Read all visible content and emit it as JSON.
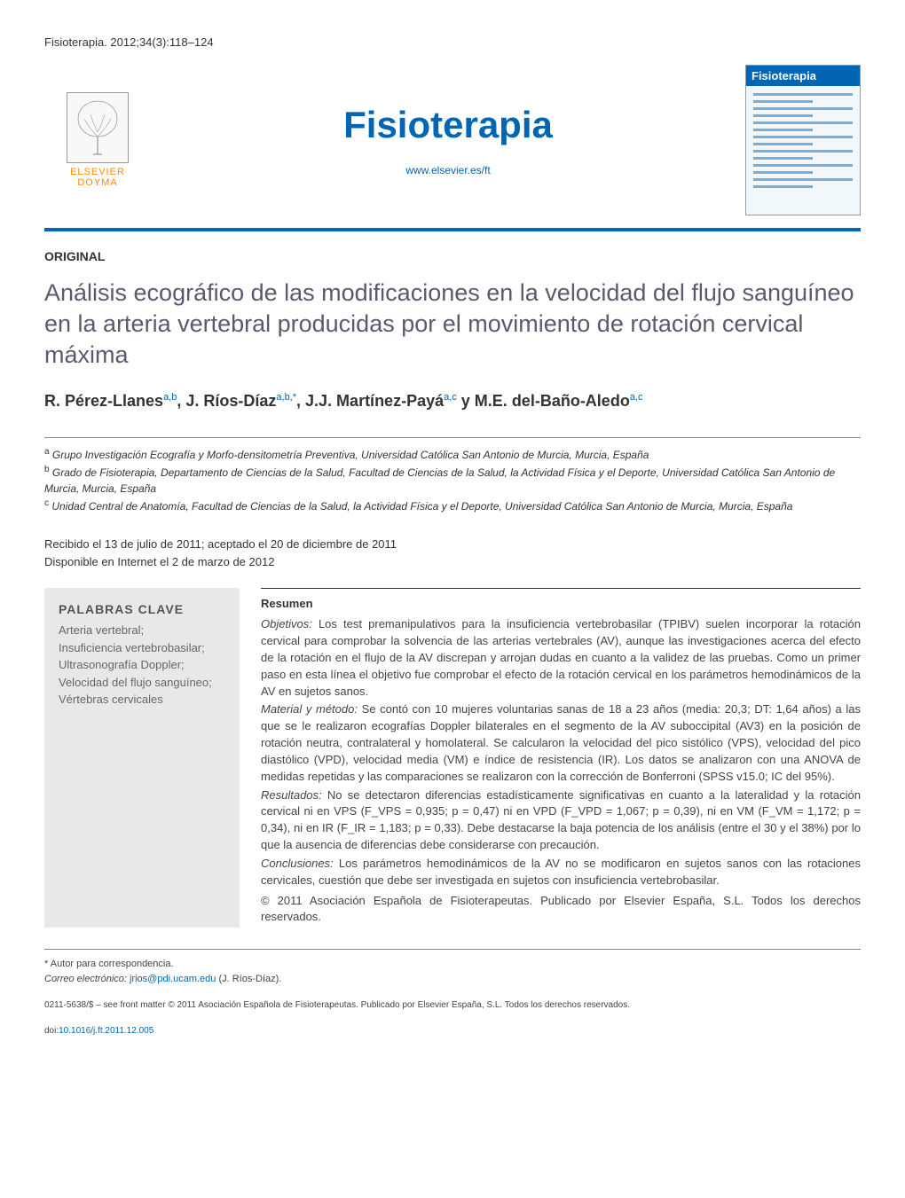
{
  "citation": "Fisioterapia. 2012;34(3):118–124",
  "header": {
    "publisher_logo_text": "ELSEVIER\nDOYMA",
    "journal_title": "Fisioterapia",
    "journal_url": "www.elsevier.es/ft",
    "cover_label": "Fisioterapia",
    "accent_color": "#0066b3",
    "logo_orange": "#ff8c00"
  },
  "article": {
    "type": "ORIGINAL",
    "title": "Análisis ecográfico de las modificaciones en la velocidad del flujo sanguíneo en la arteria vertebral producidas por el movimiento de rotación cervical máxima",
    "authors_html": "R. Pérez-Llanes",
    "authors": [
      {
        "name": "R. Pérez-Llanes",
        "affil": "a,b"
      },
      {
        "name": "J. Ríos-Díaz",
        "affil": "a,b,*"
      },
      {
        "name": "J.J. Martínez-Payá",
        "affil": "a,c"
      },
      {
        "name": "M.E. del-Baño-Aledo",
        "affil": "a,c"
      }
    ],
    "author_separator": ", ",
    "author_last_separator": " y ",
    "affiliations": [
      {
        "sup": "a",
        "text": "Grupo Investigación Ecografía y Morfo-densitometría Preventiva, Universidad Católica San Antonio de Murcia, Murcia, España"
      },
      {
        "sup": "b",
        "text": "Grado de Fisioterapia, Departamento de Ciencias de la Salud, Facultad de Ciencias de la Salud, la Actividad Física y el Deporte, Universidad Católica San Antonio de Murcia, Murcia, España"
      },
      {
        "sup": "c",
        "text": "Unidad Central de Anatomía, Facultad de Ciencias de la Salud, la Actividad Física y el Deporte, Universidad Católica San Antonio de Murcia, Murcia, España"
      }
    ],
    "dates": {
      "received_accepted": "Recibido el 13 de julio de 2011; aceptado el 20 de diciembre de 2011",
      "online": "Disponible en Internet el 2 de marzo de 2012"
    }
  },
  "keywords": {
    "label": "PALABRAS CLAVE",
    "items": "Arteria vertebral;\nInsuficiencia vertebrobasilar;\nUltrasonografía Doppler;\nVelocidad del flujo sanguíneo;\nVértebras cervicales"
  },
  "abstract": {
    "heading": "Resumen",
    "sections": [
      {
        "label": "Objetivos:",
        "text": "Los test premanipulativos para la insuficiencia vertebrobasilar (TPIBV) suelen incorporar la rotación cervical para comprobar la solvencia de las arterias vertebrales (AV), aunque las investigaciones acerca del efecto de la rotación en el flujo de la AV discrepan y arrojan dudas en cuanto a la validez de las pruebas. Como un primer paso en esta línea el objetivo fue comprobar el efecto de la rotación cervical en los parámetros hemodinámicos de la AV en sujetos sanos."
      },
      {
        "label": "Material y método:",
        "text": "Se contó con 10 mujeres voluntarias sanas de 18 a 23 años (media: 20,3; DT: 1,64 años) a las que se le realizaron ecografías Doppler bilaterales en el segmento de la AV suboccipital (AV3) en la posición de rotación neutra, contralateral y homolateral. Se calcularon la velocidad del pico sistólico (VPS), velocidad del pico diastólico (VPD), velocidad media (VM) e índice de resistencia (IR). Los datos se analizaron con una ANOVA de medidas repetidas y las comparaciones se realizaron con la corrección de Bonferroni (SPSS v15.0; IC del 95%)."
      },
      {
        "label": "Resultados:",
        "text": "No se detectaron diferencias estadísticamente significativas en cuanto a la lateralidad y la rotación cervical ni en VPS (F_VPS = 0,935; p = 0,47) ni en VPD (F_VPD = 1,067; p = 0,39), ni en VM (F_VM = 1,172; p = 0,34), ni en IR (F_IR = 1,183; p = 0,33). Debe destacarse la baja potencia de los análisis (entre el 30 y el 38%) por lo que la ausencia de diferencias debe considerarse con precaución."
      },
      {
        "label": "Conclusiones:",
        "text": "Los parámetros hemodinámicos de la AV no se modificaron en sujetos sanos con las rotaciones cervicales, cuestión que debe ser investigada en sujetos con insuficiencia vertebrobasilar."
      }
    ],
    "copyright": "© 2011 Asociación Española de Fisioterapeutas. Publicado por Elsevier España, S.L. Todos los derechos reservados."
  },
  "footnotes": {
    "corresponding": "* Autor para correspondencia.",
    "email_label": "Correo electrónico:",
    "email": "jrios@pdi.ucam.edu",
    "email_author": "(J. Ríos-Díaz).",
    "issn_line": "0211-5638/$ – see front matter © 2011 Asociación Española de Fisioterapeutas. Publicado por Elsevier España, S.L. Todos los derechos reservados.",
    "doi_label": "doi:",
    "doi": "10.1016/j.ft.2011.12.005"
  }
}
